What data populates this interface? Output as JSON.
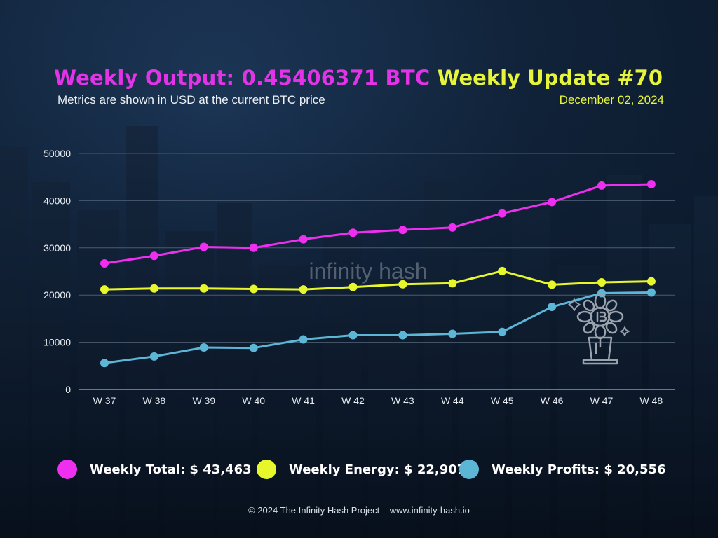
{
  "header": {
    "title": "Weekly Output: 0.45406371 BTC",
    "subtitle": "Metrics are shown in USD at the current BTC price",
    "update_title": "Weekly Update #70",
    "update_date": "December 02, 2024"
  },
  "watermark": {
    "text": "infinity hash"
  },
  "chart_data": {
    "type": "line",
    "categories": [
      "W 37",
      "W 38",
      "W 39",
      "W 40",
      "W 41",
      "W 42",
      "W 43",
      "W 44",
      "W 45",
      "W 46",
      "W 47",
      "W 48"
    ],
    "series": [
      {
        "name": "Weekly Total",
        "color": "#ee2ff0",
        "values": [
          26700,
          28300,
          30200,
          30000,
          31800,
          33200,
          33800,
          34300,
          37300,
          39700,
          43200,
          43463
        ]
      },
      {
        "name": "Weekly Energy",
        "color": "#e8f72c",
        "values": [
          21200,
          21400,
          21400,
          21300,
          21200,
          21700,
          22300,
          22500,
          25100,
          22200,
          22700,
          22907
        ]
      },
      {
        "name": "Weekly Profits",
        "color": "#5cb6d6",
        "values": [
          5600,
          7000,
          8900,
          8800,
          10600,
          11500,
          11500,
          11800,
          12200,
          17500,
          20400,
          20556
        ]
      }
    ],
    "yticks": [
      "0",
      "10000",
      "20000",
      "30000",
      "40000",
      "50000"
    ],
    "ylim": [
      0,
      50000
    ],
    "grid": true,
    "legend_position": "bottom"
  },
  "legend": {
    "items": [
      {
        "label": "Weekly Total: $ 43,463",
        "color": "#ee2ff0"
      },
      {
        "label": "Weekly Energy: $ 22,907",
        "color": "#e8f72c"
      },
      {
        "label": "Weekly Profits: $ 20,556",
        "color": "#5cb6d6"
      }
    ]
  },
  "footer": {
    "text": "© 2024 The Infinity Hash Project – www.infinity-hash.io"
  },
  "icons": {
    "plant": "bitcoin-plant-icon"
  }
}
